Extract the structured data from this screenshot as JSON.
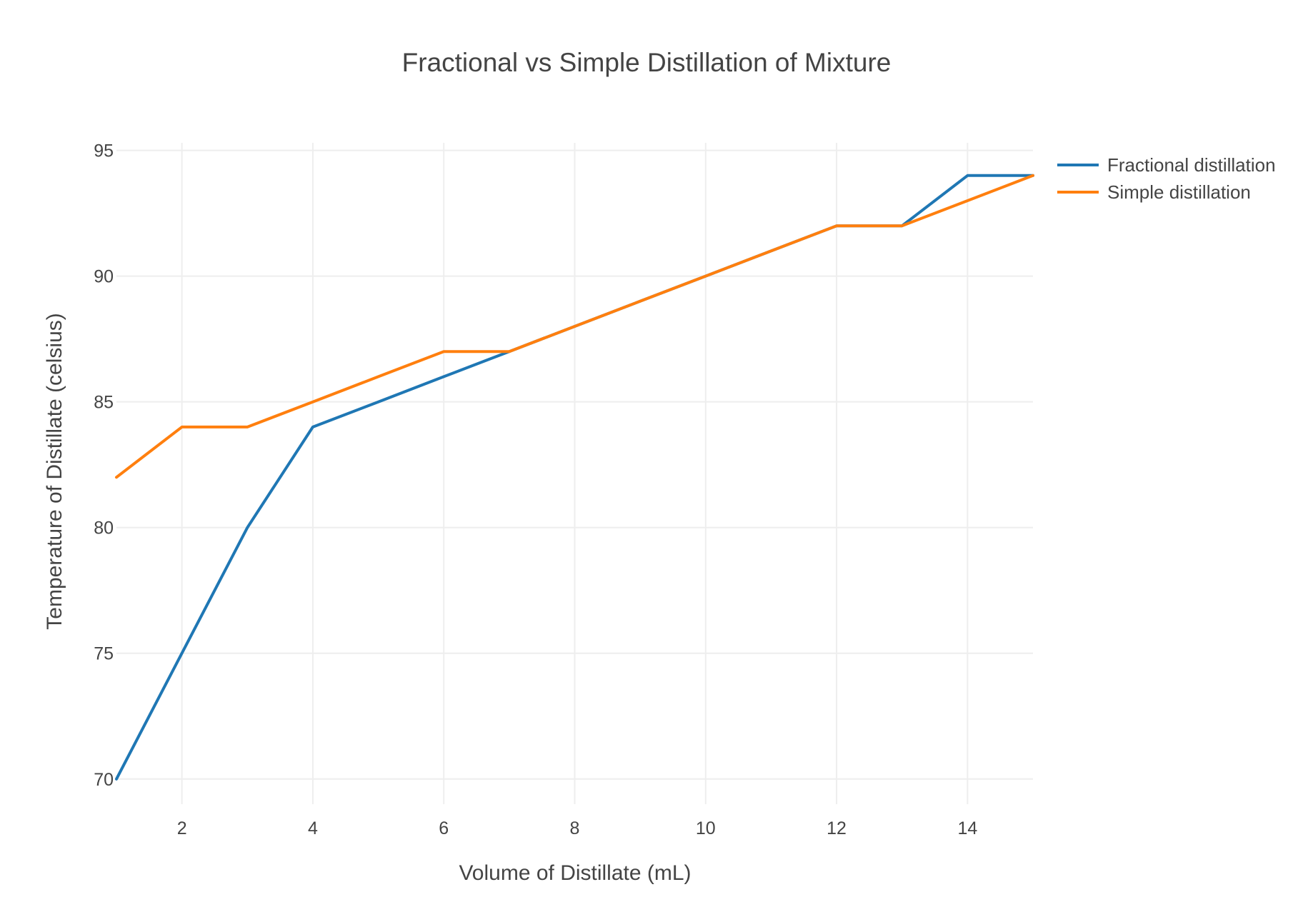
{
  "chart_data": {
    "type": "line",
    "title": "Fractional vs Simple Distillation of Mixture",
    "xlabel": "Volume of Distillate (mL)",
    "ylabel": "Temperature of Distillate (celsius)",
    "xlim": [
      1,
      15
    ],
    "ylim": [
      69,
      95.3
    ],
    "xticks": [
      2,
      4,
      6,
      8,
      10,
      12,
      14
    ],
    "yticks": [
      70,
      75,
      80,
      85,
      90,
      95
    ],
    "x": [
      1,
      2,
      3,
      4,
      5,
      6,
      7,
      8,
      9,
      10,
      11,
      12,
      13,
      14,
      15
    ],
    "series": [
      {
        "name": "Fractional distillation",
        "color": "#1f77b4",
        "values": [
          70,
          75,
          80,
          84,
          85,
          86,
          87,
          88,
          89,
          90,
          91,
          92,
          92,
          94,
          94
        ]
      },
      {
        "name": "Simple distillation",
        "color": "#ff7f0e",
        "values": [
          82,
          84,
          84,
          85,
          86,
          87,
          87,
          88,
          89,
          90,
          91,
          92,
          92,
          93,
          94
        ]
      }
    ],
    "grid": true,
    "legend_position": "top-right"
  }
}
